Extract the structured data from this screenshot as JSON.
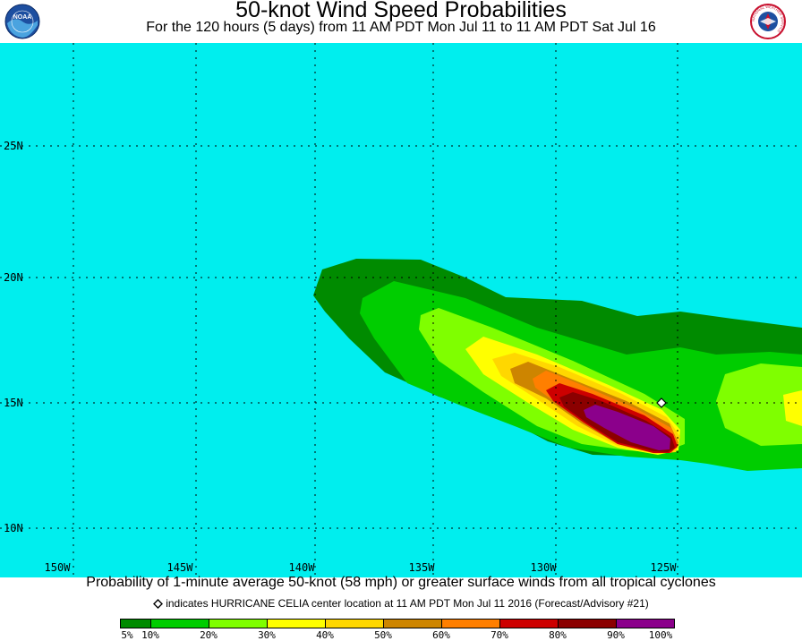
{
  "header": {
    "title": "50-knot Wind Speed Probabilities",
    "subtitle": "For the 120 hours (5 days) from 11 AM PDT Mon Jul 11 to 11 AM PDT Sat Jul 16",
    "logo_left_text": "NOAA",
    "logo_right_text": "NATIONAL WEATHER SERVICE"
  },
  "map": {
    "ocean_color": "#00eeee",
    "grid_color": "#000000",
    "lon_labels": [
      "150W",
      "145W",
      "140W",
      "135W",
      "130W",
      "125W"
    ],
    "lat_labels": [
      "25N",
      "20N",
      "15N",
      "10N"
    ],
    "storm_marker_icon": "diamond-icon"
  },
  "footer": {
    "caption": "Probability of 1-minute average 50-knot (58 mph) or greater surface winds from all tropical cyclones",
    "storm_note": "indicates HURRICANE CELIA center location at 11 AM PDT Mon Jul 11 2016 (Forecast/Advisory #21)"
  },
  "legend": {
    "colors": [
      "#008b00",
      "#00cd00",
      "#7fff00",
      "#ffff00",
      "#ffd700",
      "#cd8500",
      "#ff7f00",
      "#cd0000",
      "#8b0000",
      "#8b008b"
    ],
    "labels": [
      "5%",
      "10%",
      "20%",
      "30%",
      "40%",
      "50%",
      "60%",
      "70%",
      "80%",
      "90%",
      "100%"
    ]
  }
}
